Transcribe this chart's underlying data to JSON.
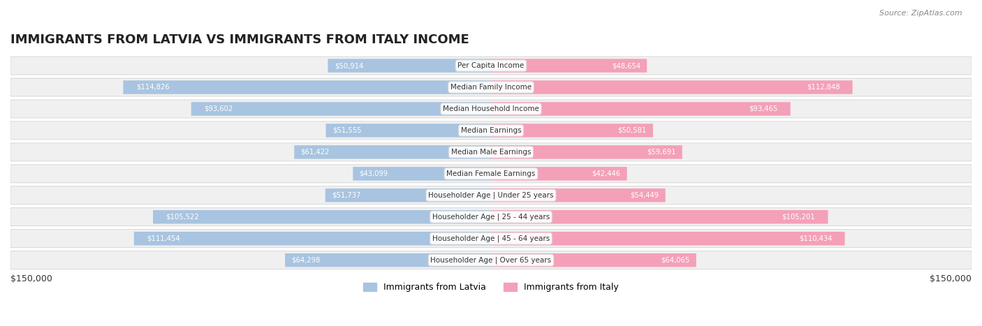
{
  "title": "IMMIGRANTS FROM LATVIA VS IMMIGRANTS FROM ITALY INCOME",
  "source": "Source: ZipAtlas.com",
  "categories": [
    "Per Capita Income",
    "Median Family Income",
    "Median Household Income",
    "Median Earnings",
    "Median Male Earnings",
    "Median Female Earnings",
    "Householder Age | Under 25 years",
    "Householder Age | 25 - 44 years",
    "Householder Age | 45 - 64 years",
    "Householder Age | Over 65 years"
  ],
  "latvia_values": [
    50914,
    114826,
    93602,
    51555,
    61422,
    43099,
    51737,
    105522,
    111454,
    64298
  ],
  "italy_values": [
    48654,
    112848,
    93465,
    50581,
    59691,
    42446,
    54449,
    105201,
    110434,
    64065
  ],
  "latvia_color": "#a8c4e0",
  "italy_color": "#f4a0b8",
  "latvia_label_color": "#5a8fc0",
  "italy_label_color": "#e06080",
  "max_value": 150000,
  "background_color": "#f5f5f5",
  "row_bg_color": "#efefef",
  "label_box_color": "#ffffff",
  "title_fontsize": 14,
  "tick_label": "$150,000",
  "legend_latvia": "Immigrants from Latvia",
  "legend_italy": "Immigrants from Italy"
}
